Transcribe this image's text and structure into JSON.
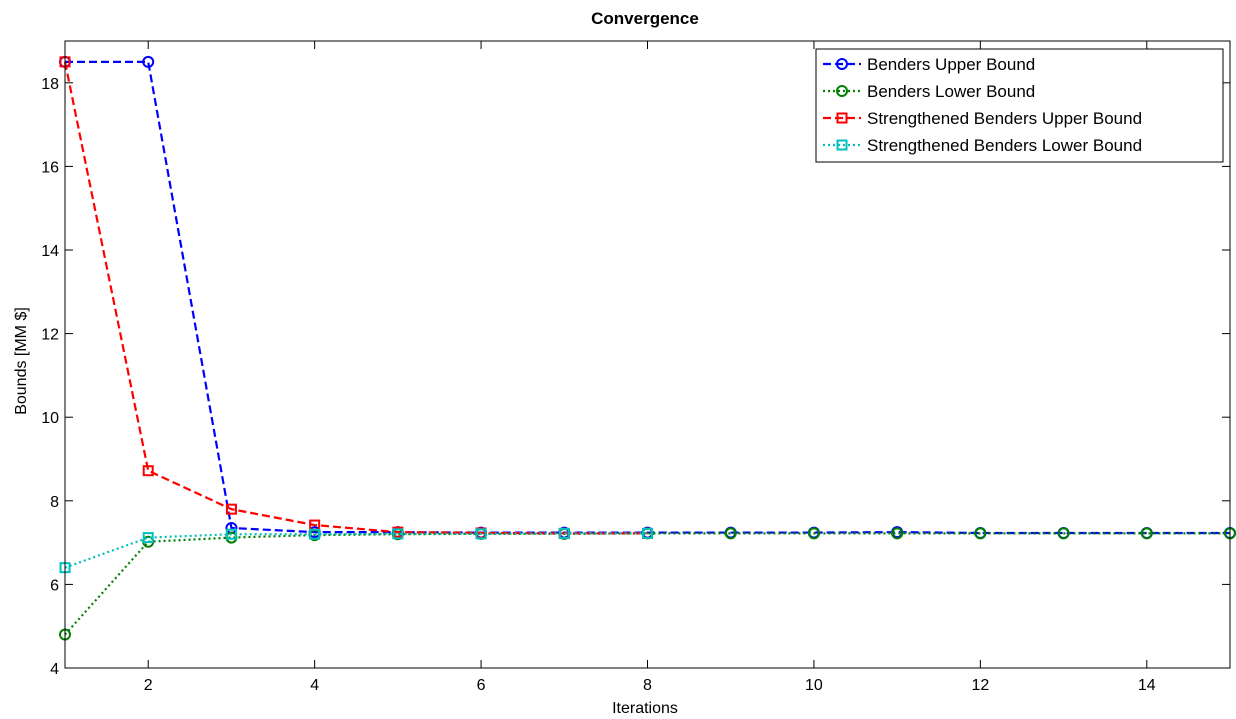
{
  "chart_data": {
    "type": "line",
    "title": "Convergence",
    "xlabel": "Iterations",
    "ylabel": "Bounds [MM $]",
    "xlim": [
      1,
      15
    ],
    "ylim": [
      4,
      19
    ],
    "xticks": [
      2,
      4,
      6,
      8,
      10,
      12,
      14
    ],
    "yticks": [
      4,
      6,
      8,
      10,
      12,
      14,
      16,
      18
    ],
    "grid": false,
    "legend_position": "top-right",
    "x": [
      1,
      2,
      3,
      4,
      5,
      6,
      7,
      8,
      9,
      10,
      11,
      12,
      13,
      14,
      15
    ],
    "series": [
      {
        "name": "Benders Upper Bound",
        "color": "#0000ff",
        "marker": "circle",
        "line_style": "dashed",
        "x": [
          1,
          2,
          3,
          4,
          5,
          6,
          7,
          8,
          9,
          10,
          11,
          12,
          13,
          14,
          15
        ],
        "values": [
          18.5,
          18.5,
          7.35,
          7.25,
          7.25,
          7.24,
          7.24,
          7.24,
          7.24,
          7.24,
          7.25,
          7.23,
          7.23,
          7.23,
          7.23
        ]
      },
      {
        "name": "Benders Lower Bound",
        "color": "#008000",
        "marker": "circle",
        "line_style": "dotted",
        "x": [
          1,
          2,
          3,
          4,
          5,
          6,
          7,
          8,
          9,
          10,
          11,
          12,
          13,
          14,
          15
        ],
        "values": [
          4.8,
          7.02,
          7.12,
          7.18,
          7.2,
          7.21,
          7.21,
          7.22,
          7.22,
          7.22,
          7.22,
          7.22,
          7.22,
          7.22,
          7.22
        ]
      },
      {
        "name": "Strengthened Benders Upper Bound",
        "color": "#ff0000",
        "marker": "square",
        "line_style": "dashed",
        "x": [
          1,
          2,
          3,
          4,
          5,
          6,
          7,
          8
        ],
        "values": [
          18.5,
          8.72,
          7.8,
          7.42,
          7.25,
          7.23,
          7.22,
          7.22
        ]
      },
      {
        "name": "Strengthened Benders Lower Bound",
        "color": "#00bfbf",
        "marker": "square",
        "line_style": "dotted",
        "x": [
          1,
          2,
          3,
          4,
          5,
          6,
          7,
          8
        ],
        "values": [
          6.4,
          7.12,
          7.2,
          7.2,
          7.21,
          7.21,
          7.22,
          7.22
        ]
      }
    ]
  }
}
